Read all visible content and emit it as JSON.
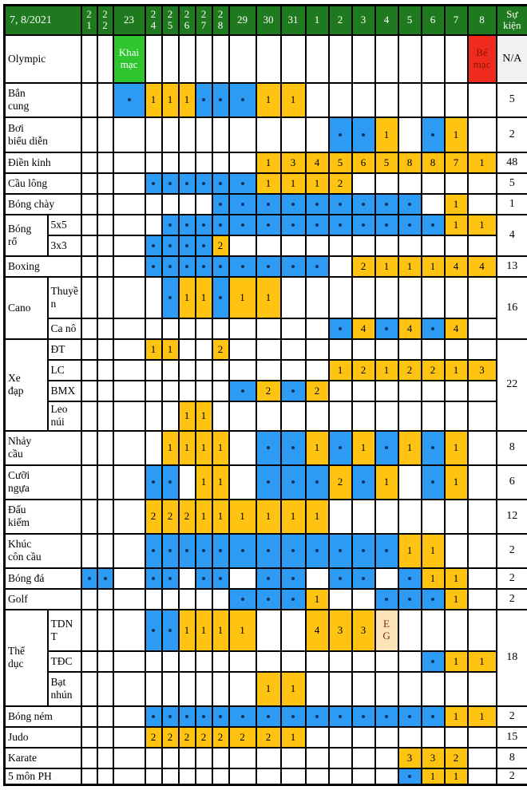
{
  "table": {
    "title": "7, 8/2021",
    "events_header": "Sự kiện",
    "date_columns": [
      "21",
      "22",
      "23",
      "24",
      "25",
      "26",
      "27",
      "28",
      "29",
      "30",
      "31",
      "1",
      "2",
      "3",
      "4",
      "5",
      "6",
      "7",
      "8"
    ],
    "legend": {
      "competition_day_color": "#2d9bf3",
      "medal_day_color": "#fec411",
      "opening_ceremony_color": "#2ec52e",
      "closing_ceremony_color": "#ef2b1d",
      "header_color": "#1f7a1f",
      "exhibition_gala_color": "#fce3b8"
    },
    "rows": [
      {
        "label": "Olympic",
        "cells": [
          [
            "23",
            "open",
            "Khai mạc"
          ],
          [
            "8",
            "close",
            "Bế mạc"
          ]
        ],
        "events": "N/A"
      },
      {
        "label": "Bắn\ncung",
        "cells": [
          [
            "23",
            "dot"
          ],
          [
            "24",
            "num",
            "1"
          ],
          [
            "25",
            "num",
            "1"
          ],
          [
            "26",
            "num",
            "1"
          ],
          [
            "27",
            "dot"
          ],
          [
            "28",
            "dot"
          ],
          [
            "29",
            "dot"
          ],
          [
            "30",
            "num",
            "1"
          ],
          [
            "31",
            "num",
            "1"
          ]
        ],
        "events": "5"
      },
      {
        "label": "Bơi\nbiểu diễn",
        "cells": [
          [
            "2",
            "dot"
          ],
          [
            "3",
            "dot"
          ],
          [
            "4",
            "num",
            "1"
          ],
          [
            "6",
            "dot"
          ],
          [
            "7",
            "num",
            "1"
          ]
        ],
        "events": "2"
      },
      {
        "label": "Điền kinh",
        "cells": [
          [
            "30",
            "num",
            "1"
          ],
          [
            "31",
            "num",
            "3"
          ],
          [
            "1",
            "num",
            "4"
          ],
          [
            "2",
            "num",
            "5"
          ],
          [
            "3",
            "num",
            "6"
          ],
          [
            "4",
            "num",
            "5"
          ],
          [
            "5",
            "num",
            "8"
          ],
          [
            "6",
            "num",
            "8"
          ],
          [
            "7",
            "num",
            "7"
          ],
          [
            "8",
            "num",
            "1"
          ]
        ],
        "events": "48"
      },
      {
        "label": "Cầu lông",
        "cells": [
          [
            "24",
            "dot"
          ],
          [
            "25",
            "dot"
          ],
          [
            "26",
            "dot"
          ],
          [
            "27",
            "dot"
          ],
          [
            "28",
            "dot"
          ],
          [
            "29",
            "dot"
          ],
          [
            "30",
            "num",
            "1"
          ],
          [
            "31",
            "num",
            "1"
          ],
          [
            "1",
            "num",
            "1"
          ],
          [
            "2",
            "num",
            "2"
          ]
        ],
        "events": "5"
      },
      {
        "label": "Bóng chày",
        "cells": [
          [
            "28",
            "dot"
          ],
          [
            "29",
            "dot"
          ],
          [
            "30",
            "dot"
          ],
          [
            "31",
            "dot"
          ],
          [
            "1",
            "dot"
          ],
          [
            "2",
            "dot"
          ],
          [
            "3",
            "dot"
          ],
          [
            "4",
            "dot"
          ],
          [
            "5",
            "dot"
          ],
          [
            "7",
            "num",
            "1"
          ]
        ],
        "events": "1"
      },
      {
        "group": "Bóng\nrổ",
        "group_span": 2,
        "sub": "5x5",
        "cells": [
          [
            "25",
            "dot"
          ],
          [
            "26",
            "dot"
          ],
          [
            "27",
            "dot"
          ],
          [
            "28",
            "dot"
          ],
          [
            "29",
            "dot"
          ],
          [
            "30",
            "dot"
          ],
          [
            "31",
            "dot"
          ],
          [
            "1",
            "dot"
          ],
          [
            "2",
            "dot"
          ],
          [
            "3",
            "dot"
          ],
          [
            "4",
            "dot"
          ],
          [
            "5",
            "dot"
          ],
          [
            "6",
            "dot"
          ],
          [
            "7",
            "num",
            "1"
          ],
          [
            "8",
            "num",
            "1"
          ]
        ],
        "events": "4",
        "events_span": 2
      },
      {
        "sub": "3x3",
        "cells": [
          [
            "24",
            "dot"
          ],
          [
            "25",
            "dot"
          ],
          [
            "26",
            "dot"
          ],
          [
            "27",
            "dot"
          ],
          [
            "28",
            "num",
            "2"
          ]
        ]
      },
      {
        "label": "Boxing",
        "cells": [
          [
            "24",
            "dot"
          ],
          [
            "25",
            "dot"
          ],
          [
            "26",
            "dot"
          ],
          [
            "27",
            "dot"
          ],
          [
            "28",
            "dot"
          ],
          [
            "29",
            "dot"
          ],
          [
            "30",
            "dot"
          ],
          [
            "31",
            "dot"
          ],
          [
            "1",
            "dot"
          ],
          [
            "3",
            "num",
            "2"
          ],
          [
            "4",
            "num",
            "1"
          ],
          [
            "5",
            "num",
            "1"
          ],
          [
            "6",
            "num",
            "1"
          ],
          [
            "7",
            "num",
            "4"
          ],
          [
            "8",
            "num",
            "4"
          ]
        ],
        "events": "13"
      },
      {
        "group": "Cano",
        "group_span": 2,
        "sub": "Thuyề\nn",
        "cells": [
          [
            "25",
            "dot"
          ],
          [
            "26",
            "num",
            "1"
          ],
          [
            "27",
            "num",
            "1"
          ],
          [
            "28",
            "dot"
          ],
          [
            "29",
            "num",
            "1"
          ],
          [
            "30",
            "num",
            "1"
          ]
        ],
        "events": "16",
        "events_span": 2
      },
      {
        "sub": "Ca nô",
        "cells": [
          [
            "2",
            "dot"
          ],
          [
            "3",
            "num",
            "4"
          ],
          [
            "4",
            "dot"
          ],
          [
            "5",
            "num",
            "4"
          ],
          [
            "6",
            "dot"
          ],
          [
            "7",
            "num",
            "4"
          ]
        ]
      },
      {
        "group": "Xe\nđạp",
        "group_span": 4,
        "sub": "ĐT",
        "cells": [
          [
            "24",
            "num",
            "1"
          ],
          [
            "25",
            "num",
            "1"
          ],
          [
            "28",
            "num",
            "2"
          ]
        ],
        "events": "22",
        "events_span": 4
      },
      {
        "sub": "LC",
        "cells": [
          [
            "2",
            "num",
            "1"
          ],
          [
            "3",
            "num",
            "2"
          ],
          [
            "4",
            "num",
            "1"
          ],
          [
            "5",
            "num",
            "2"
          ],
          [
            "6",
            "num",
            "2"
          ],
          [
            "7",
            "num",
            "1"
          ],
          [
            "8",
            "num",
            "3"
          ]
        ]
      },
      {
        "sub": "BMX",
        "cells": [
          [
            "29",
            "dot"
          ],
          [
            "30",
            "num",
            "2"
          ],
          [
            "31",
            "dot"
          ],
          [
            "1",
            "num",
            "2"
          ]
        ]
      },
      {
        "sub": "Leo\nnúi",
        "cells": [
          [
            "26",
            "num",
            "1"
          ],
          [
            "27",
            "num",
            "1"
          ]
        ]
      },
      {
        "label": "Nhảy\ncầu",
        "cells": [
          [
            "25",
            "num",
            "1"
          ],
          [
            "26",
            "num",
            "1"
          ],
          [
            "27",
            "num",
            "1"
          ],
          [
            "28",
            "num",
            "1"
          ],
          [
            "30",
            "dot"
          ],
          [
            "31",
            "dot"
          ],
          [
            "1",
            "num",
            "1"
          ],
          [
            "2",
            "dot"
          ],
          [
            "3",
            "num",
            "1"
          ],
          [
            "4",
            "dot"
          ],
          [
            "5",
            "num",
            "1"
          ],
          [
            "6",
            "dot"
          ],
          [
            "7",
            "num",
            "1"
          ]
        ],
        "events": "8"
      },
      {
        "label": "Cưỡi\nngựa",
        "cells": [
          [
            "24",
            "dot"
          ],
          [
            "25",
            "dot"
          ],
          [
            "27",
            "num",
            "1"
          ],
          [
            "28",
            "num",
            "1"
          ],
          [
            "30",
            "dot"
          ],
          [
            "31",
            "dot"
          ],
          [
            "1",
            "dot"
          ],
          [
            "2",
            "num",
            "2"
          ],
          [
            "3",
            "dot"
          ],
          [
            "4",
            "num",
            "1"
          ],
          [
            "6",
            "dot"
          ],
          [
            "7",
            "num",
            "1"
          ]
        ],
        "events": "6"
      },
      {
        "label": "Đấu\nkiếm",
        "cells": [
          [
            "24",
            "num",
            "2"
          ],
          [
            "25",
            "num",
            "2"
          ],
          [
            "26",
            "num",
            "2"
          ],
          [
            "27",
            "num",
            "1"
          ],
          [
            "28",
            "num",
            "1"
          ],
          [
            "29",
            "num",
            "1"
          ],
          [
            "30",
            "num",
            "1"
          ],
          [
            "31",
            "num",
            "1"
          ],
          [
            "1",
            "num",
            "1"
          ]
        ],
        "events": "12"
      },
      {
        "label": "Khúc\ncôn cầu",
        "cells": [
          [
            "24",
            "dot"
          ],
          [
            "25",
            "dot"
          ],
          [
            "26",
            "dot"
          ],
          [
            "27",
            "dot"
          ],
          [
            "28",
            "dot"
          ],
          [
            "29",
            "dot"
          ],
          [
            "30",
            "dot"
          ],
          [
            "31",
            "dot"
          ],
          [
            "1",
            "dot"
          ],
          [
            "2",
            "dot"
          ],
          [
            "3",
            "dot"
          ],
          [
            "4",
            "dot"
          ],
          [
            "5",
            "num",
            "1"
          ],
          [
            "6",
            "num",
            "1"
          ]
        ],
        "events": "2"
      },
      {
        "label": "Bóng đá",
        "cells": [
          [
            "21",
            "dot"
          ],
          [
            "22",
            "dot"
          ],
          [
            "24",
            "dot"
          ],
          [
            "25",
            "dot"
          ],
          [
            "27",
            "dot"
          ],
          [
            "28",
            "dot"
          ],
          [
            "30",
            "dot"
          ],
          [
            "31",
            "dot"
          ],
          [
            "2",
            "dot"
          ],
          [
            "3",
            "dot"
          ],
          [
            "5",
            "dot"
          ],
          [
            "6",
            "num",
            "1"
          ],
          [
            "7",
            "num",
            "1"
          ]
        ],
        "events": "2"
      },
      {
        "label": "Golf",
        "cells": [
          [
            "29",
            "dot"
          ],
          [
            "30",
            "dot"
          ],
          [
            "31",
            "dot"
          ],
          [
            "1",
            "num",
            "1"
          ],
          [
            "4",
            "dot"
          ],
          [
            "5",
            "dot"
          ],
          [
            "6",
            "dot"
          ],
          [
            "7",
            "num",
            "1"
          ]
        ],
        "events": "2"
      },
      {
        "group": "Thể\ndục",
        "group_span": 3,
        "sub": "TDN\nT",
        "cells": [
          [
            "24",
            "dot"
          ],
          [
            "25",
            "dot"
          ],
          [
            "26",
            "num",
            "1"
          ],
          [
            "27",
            "num",
            "1"
          ],
          [
            "28",
            "num",
            "1"
          ],
          [
            "29",
            "num",
            "1"
          ],
          [
            "1",
            "num",
            "4"
          ],
          [
            "2",
            "num",
            "3"
          ],
          [
            "3",
            "num",
            "3"
          ],
          [
            "4",
            "eg",
            "E\nG"
          ]
        ],
        "events": "18",
        "events_span": 3
      },
      {
        "sub": "TĐC",
        "cells": [
          [
            "6",
            "dot"
          ],
          [
            "7",
            "num",
            "1"
          ],
          [
            "8",
            "num",
            "1"
          ]
        ]
      },
      {
        "sub": "Bạt\nnhún",
        "cells": [
          [
            "30",
            "num",
            "1"
          ],
          [
            "31",
            "num",
            "1"
          ]
        ]
      },
      {
        "label": "Bóng ném",
        "cells": [
          [
            "24",
            "dot"
          ],
          [
            "25",
            "dot"
          ],
          [
            "26",
            "dot"
          ],
          [
            "27",
            "dot"
          ],
          [
            "28",
            "dot"
          ],
          [
            "29",
            "dot"
          ],
          [
            "30",
            "dot"
          ],
          [
            "31",
            "dot"
          ],
          [
            "1",
            "dot"
          ],
          [
            "2",
            "dot"
          ],
          [
            "3",
            "dot"
          ],
          [
            "4",
            "dot"
          ],
          [
            "5",
            "dot"
          ],
          [
            "6",
            "dot"
          ],
          [
            "7",
            "num",
            "1"
          ],
          [
            "8",
            "num",
            "1"
          ]
        ],
        "events": "2"
      },
      {
        "label": "Judo",
        "cells": [
          [
            "24",
            "num",
            "2"
          ],
          [
            "25",
            "num",
            "2"
          ],
          [
            "26",
            "num",
            "2"
          ],
          [
            "27",
            "num",
            "2"
          ],
          [
            "28",
            "num",
            "2"
          ],
          [
            "29",
            "num",
            "2"
          ],
          [
            "30",
            "num",
            "2"
          ],
          [
            "31",
            "num",
            "1"
          ]
        ],
        "events": "15"
      },
      {
        "label": "Karate",
        "cells": [
          [
            "5",
            "num",
            "3"
          ],
          [
            "6",
            "num",
            "3"
          ],
          [
            "7",
            "num",
            "2"
          ]
        ],
        "events": "8"
      },
      {
        "label": "5 môn PH",
        "cells": [
          [
            "5",
            "dot"
          ],
          [
            "6",
            "num",
            "1"
          ],
          [
            "7",
            "num",
            "1"
          ]
        ],
        "events": "2"
      }
    ]
  }
}
